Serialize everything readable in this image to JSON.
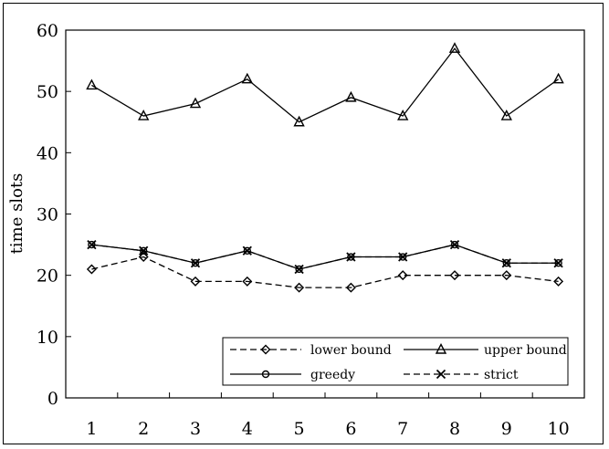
{
  "chart_data": {
    "type": "line",
    "title": "",
    "xlabel": "",
    "ylabel": "time slots",
    "categories": [
      "1",
      "2",
      "3",
      "4",
      "5",
      "6",
      "7",
      "8",
      "9",
      "10"
    ],
    "ylim": [
      0,
      60
    ],
    "yticks": [
      0,
      10,
      20,
      30,
      40,
      50,
      60
    ],
    "grid": false,
    "legend_position": "bottom-right",
    "series": [
      {
        "name": "lower bound",
        "marker": "diamond",
        "dash": "dashed",
        "values": [
          21,
          23,
          19,
          19,
          18,
          18,
          20,
          20,
          20,
          19
        ]
      },
      {
        "name": "upper bound",
        "marker": "triangle",
        "dash": "solid",
        "values": [
          51,
          46,
          48,
          52,
          45,
          49,
          46,
          57,
          46,
          52
        ]
      },
      {
        "name": "greedy",
        "marker": "circle",
        "dash": "solid",
        "values": [
          25,
          24,
          22,
          24,
          21,
          23,
          23,
          25,
          22,
          22
        ]
      },
      {
        "name": "strict",
        "marker": "x",
        "dash": "dashed",
        "values": [
          25,
          24,
          22,
          24,
          21,
          23,
          23,
          25,
          22,
          22
        ]
      }
    ]
  }
}
